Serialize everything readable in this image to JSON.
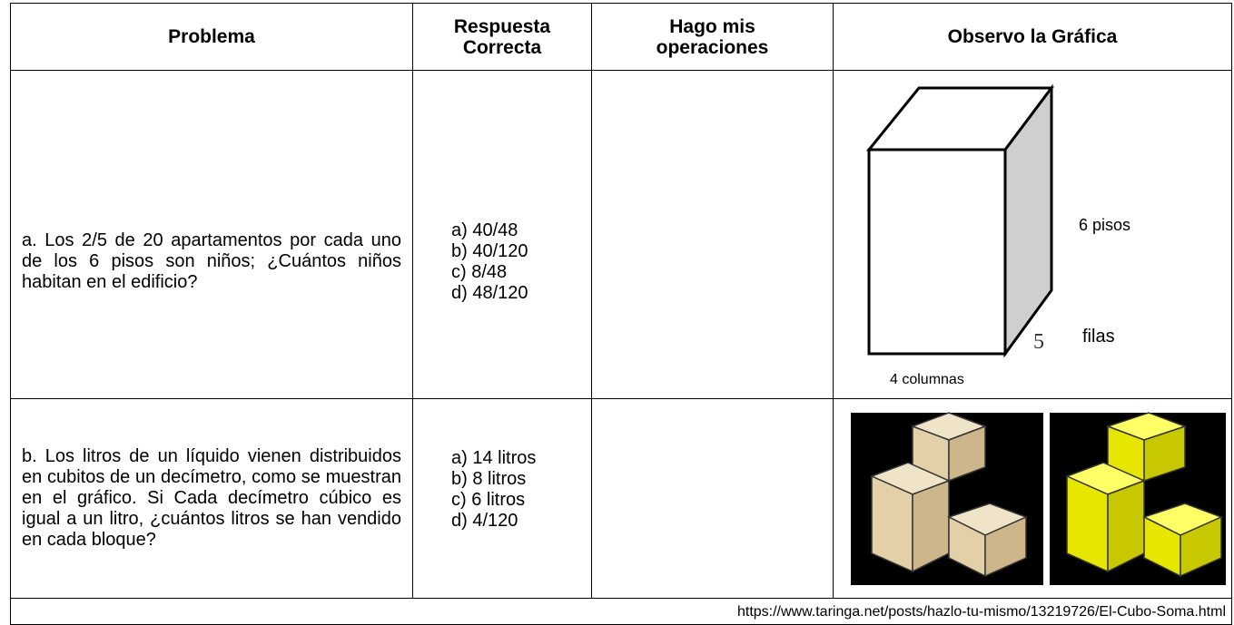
{
  "table": {
    "headers": [
      "Problema",
      "Respuesta Correcta",
      "Hago mis operaciones",
      "Observo la Gráfica"
    ],
    "rows": [
      {
        "problem": "a. Los 2/5 de 20 apartamentos por cada uno de los 6 pisos son niños; ¿Cuántos niños habitan en el edificio?",
        "answers": [
          "a) 40/48",
          "b) 40/120",
          "c) 8/48",
          "d) 48/120"
        ],
        "graphic_labels": [
          "6 pisos",
          "5",
          "filas",
          "4 columnas"
        ]
      },
      {
        "problem": "b. Los litros de un líquido vienen distribuidos en cubitos de un decímetro, como se muestran en el gráfico. Si Cada decímetro cúbico es igual a un litro, ¿cuántos litros se han vendido en cada bloque?",
        "answers": [
          "a) 14 litros",
          "b) 8 litros",
          "c) 6 litros",
          "d) 4/120"
        ]
      }
    ]
  },
  "footer": {
    "source": "https://www.taringa.net/posts/hazlo-tu-mismo/13219726/El-Cubo-Soma.html"
  }
}
